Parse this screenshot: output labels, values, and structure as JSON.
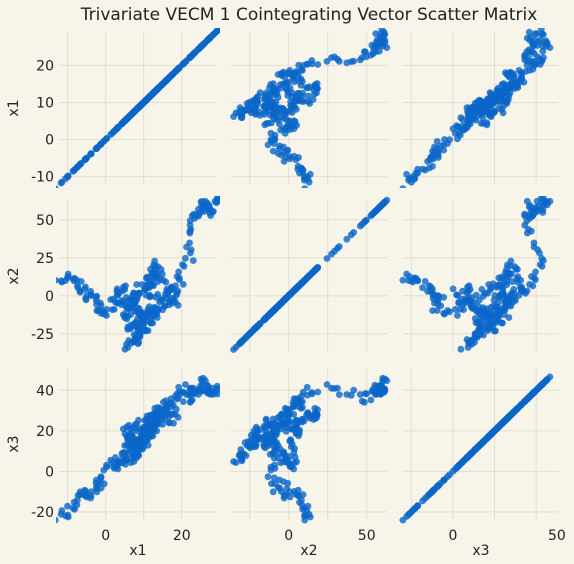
{
  "title": "Trivariate VECM 1 Cointegrating Vector Scatter Matrix",
  "colors": {
    "background": "#f7f4ea",
    "points": "#0a66c8",
    "grid": "#e2ded2"
  },
  "chart_data": {
    "type": "scatter",
    "layout": "3x3 scatter matrix",
    "grid": true,
    "variables": [
      "x1",
      "x2",
      "x3"
    ],
    "ranges": {
      "x1": [
        -12,
        29
      ],
      "x2": [
        -37,
        63
      ],
      "x3": [
        -24,
        51
      ]
    },
    "ticks": {
      "x1": [
        -10,
        0,
        10,
        20
      ],
      "x2": [
        -25,
        0,
        25,
        50
      ],
      "x3": [
        -20,
        0,
        20,
        40
      ]
    },
    "bottom_ticks": {
      "x1": [
        0,
        20
      ],
      "x2": [
        0,
        50
      ],
      "x3": [
        0,
        50
      ]
    },
    "paths": {
      "x1": [
        -12,
        -10,
        -8,
        -6,
        -5,
        -3,
        -2,
        0,
        2,
        3,
        5,
        4,
        6,
        8,
        10,
        9,
        7,
        8,
        10,
        12,
        11,
        13,
        15,
        14,
        12,
        10,
        9,
        8,
        6,
        7,
        9,
        11,
        13,
        12,
        10,
        8,
        7,
        5,
        6,
        8,
        10,
        12,
        14,
        13,
        15,
        17,
        16,
        18,
        17,
        19,
        20,
        22,
        21,
        23,
        24,
        25,
        26,
        27,
        28,
        29
      ],
      "x2": [
        10,
        12,
        8,
        5,
        0,
        -3,
        -8,
        -12,
        -5,
        2,
        5,
        -2,
        -8,
        -12,
        -15,
        -10,
        -5,
        0,
        5,
        10,
        5,
        0,
        -5,
        -10,
        -15,
        -20,
        -25,
        -30,
        -33,
        -28,
        -22,
        -18,
        -12,
        -8,
        -12,
        -18,
        -22,
        -15,
        -8,
        0,
        8,
        15,
        20,
        15,
        10,
        5,
        0,
        -5,
        0,
        5,
        12,
        25,
        40,
        50,
        55,
        60,
        58,
        55,
        60,
        62
      ],
      "x3": [
        -22,
        -20,
        -15,
        -10,
        -12,
        -5,
        -8,
        0,
        5,
        2,
        8,
        5,
        12,
        15,
        18,
        10,
        8,
        12,
        18,
        25,
        20,
        22,
        28,
        25,
        20,
        15,
        12,
        8,
        5,
        10,
        18,
        22,
        25,
        20,
        15,
        12,
        18,
        15,
        20,
        22,
        25,
        28,
        30,
        25,
        32,
        35,
        30,
        25,
        28,
        35,
        40,
        42,
        38,
        35,
        40,
        45,
        42,
        40,
        38,
        42
      ]
    }
  }
}
